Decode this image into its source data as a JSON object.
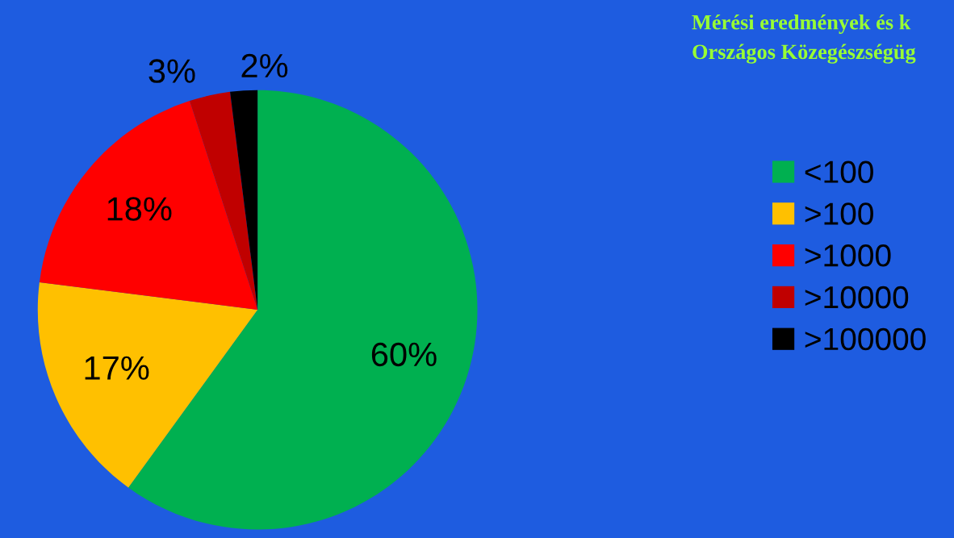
{
  "chart_data": {
    "type": "pie",
    "title": "Mérési eredmények és k",
    "subtitle": "Országos Közegészségüg",
    "categories": [
      "<100",
      ">100",
      ">1000",
      ">10000",
      ">100000"
    ],
    "values": [
      60,
      17,
      18,
      3,
      2
    ],
    "value_labels": [
      "60%",
      "17%",
      "18%",
      "3%",
      "2%"
    ],
    "colors": [
      "#00b050",
      "#ffc000",
      "#ff0000",
      "#c00000",
      "#000000"
    ],
    "legend": "right"
  }
}
